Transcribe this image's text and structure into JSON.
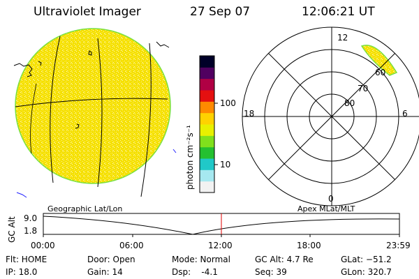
{
  "header": {
    "instrument": "Ultraviolet Imager",
    "date": "27 Sep 07",
    "time": "12:06:21 UT"
  },
  "colorbar": {
    "unit_label": "photon cm⁻²s⁻¹",
    "ticks": [
      "100",
      "10"
    ],
    "scale": "log",
    "colors": [
      "#f2f2f2",
      "#a6e8f0",
      "#20c8c8",
      "#24c030",
      "#80e01c",
      "#e8f000",
      "#ffd200",
      "#ff8a00",
      "#e41010",
      "#b00044",
      "#500060",
      "#000028"
    ]
  },
  "polar_plot": {
    "labels_mlt": {
      "top": "12",
      "left": "18",
      "right": "6",
      "bottom": "0"
    },
    "labels_lat": [
      "80",
      "70",
      "60"
    ]
  },
  "timeline": {
    "axis_label": "GC Alt",
    "ymax": "9.0",
    "ymin": "1.8",
    "left_title": "Geographic Lat/Lon",
    "right_title": "Apex MLat/MLT",
    "ticks": [
      "00:00",
      "06:00",
      "12:00",
      "18:00",
      "23:59"
    ],
    "marker_time": "12:06",
    "marker_color": "#e00000"
  },
  "status": {
    "flt": "Flt: HOME",
    "ip": "IP: 18.0",
    "door": "Door: Open",
    "gain": "Gain: 14",
    "mode": "Mode: Normal",
    "dsp": "Dsp:    -4.1",
    "gcalt": "GC Alt: 4.7 Re",
    "seq": "Seq: 39",
    "glat": "GLat: −51.2",
    "glon": "GLon: 320.7"
  },
  "colors": {
    "disk_fill": "#f5e000",
    "disk_speckle": "#fffbd0",
    "disk_edge": "#78e040",
    "polar_fill": "#f5e000"
  }
}
